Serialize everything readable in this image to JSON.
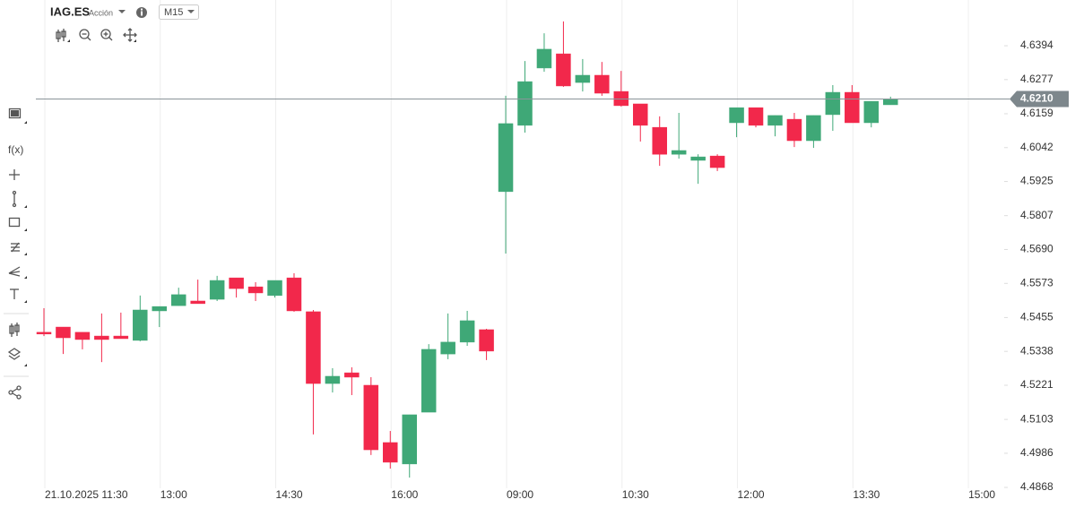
{
  "header": {
    "symbol": "IAG.ES",
    "asset_type": "Acción",
    "timeframe": "M15"
  },
  "toolbar": {
    "function_label": "f(x)"
  },
  "chart_data": {
    "type": "candlestick",
    "categories": [
      "21.10.2025 11:30",
      null,
      null,
      null,
      null,
      null,
      "13:00",
      null,
      null,
      null,
      null,
      null,
      "14:30",
      null,
      null,
      null,
      null,
      null,
      "16:00",
      null,
      null,
      null,
      null,
      null,
      "09:00",
      null,
      null,
      null,
      null,
      null,
      "10:30",
      null,
      null,
      null,
      null,
      null,
      "12:00",
      null,
      null,
      null,
      null,
      null,
      "13:30",
      null,
      null,
      null,
      null,
      null,
      "15:00",
      null
    ],
    "open": [
      4.5404,
      4.5422,
      4.5404,
      4.5391,
      4.5391,
      4.5376,
      4.5478,
      4.5496,
      4.5512,
      4.5518,
      4.5592,
      4.5561,
      4.5531,
      4.5592,
      4.5475,
      4.5227,
      4.5264,
      4.5221,
      4.5023,
      4.4949,
      4.5128,
      4.5329,
      4.537,
      4.5413,
      4.589,
      4.6119,
      4.6317,
      4.6366,
      4.6267,
      4.6292,
      4.6236,
      4.6193,
      4.6112,
      4.6019,
      4.5998,
      4.6013,
      4.6128,
      4.618,
      4.6119,
      4.614,
      4.6066,
      4.6156,
      4.6233,
      4.6128,
      4.619,
      null,
      null,
      null,
      null,
      null
    ],
    "high": [
      4.5487,
      4.5422,
      4.5404,
      4.5469,
      4.5472,
      4.5531,
      4.5493,
      4.5558,
      4.5586,
      4.5599,
      4.5592,
      4.5577,
      4.5583,
      4.5608,
      4.5481,
      4.528,
      4.5283,
      4.5249,
      4.5063,
      4.5119,
      4.5363,
      4.5469,
      4.5478,
      4.5416,
      4.6221,
      4.6341,
      4.6437,
      4.6478,
      4.6348,
      4.6338,
      4.6307,
      4.6193,
      4.615,
      4.6162,
      4.6019,
      4.6019,
      4.618,
      4.618,
      4.6153,
      4.6162,
      4.6153,
      4.6258,
      4.6258,
      4.6202,
      4.6218,
      null,
      null,
      null,
      null,
      null
    ],
    "low": [
      4.5391,
      4.5329,
      4.5345,
      4.5301,
      4.5382,
      4.5373,
      4.5422,
      4.5496,
      4.5503,
      4.5512,
      4.5524,
      4.5512,
      4.5524,
      4.5475,
      4.5051,
      4.5196,
      4.5187,
      4.498,
      4.4933,
      4.4902,
      4.5128,
      4.5311,
      4.5357,
      4.5308,
      4.5676,
      4.6094,
      4.6304,
      4.6252,
      4.6236,
      4.6221,
      4.6184,
      4.6063,
      4.5979,
      4.6004,
      4.5917,
      4.5961,
      4.6078,
      4.6112,
      4.6081,
      4.6044,
      4.6041,
      4.61,
      4.6128,
      4.6112,
      4.619,
      null,
      null,
      null,
      null,
      null
    ],
    "close": [
      4.5398,
      4.5385,
      4.5379,
      4.5379,
      4.5382,
      4.5481,
      4.5493,
      4.5534,
      4.5503,
      4.5583,
      4.5555,
      4.554,
      4.5583,
      4.5478,
      4.5227,
      4.5252,
      4.5249,
      4.4998,
      4.4955,
      4.5119,
      4.5345,
      4.537,
      4.5444,
      4.5339,
      4.6125,
      4.627,
      4.6382,
      4.6255,
      4.6292,
      4.623,
      4.6187,
      4.6119,
      4.6019,
      4.6032,
      4.601,
      4.5973,
      4.618,
      4.6119,
      4.6153,
      4.6066,
      4.6153,
      4.6233,
      4.6128,
      4.6202,
      4.6208,
      null,
      null,
      null,
      null,
      null
    ],
    "up_color": "#3fa877",
    "down_color": "#f2284b",
    "ylim": [
      4.4865,
      4.6552
    ],
    "yticks": [
      4.6394,
      4.6277,
      4.6159,
      4.6042,
      4.5925,
      4.5807,
      {
        "value": 4.569,
        "label": "4.5690"
      },
      4.5573,
      4.5455,
      4.5338,
      4.5221,
      4.5103,
      4.4986,
      4.4868
    ],
    "current_price": {
      "value": 4.621,
      "label": "4.6210"
    },
    "grid": "x"
  }
}
